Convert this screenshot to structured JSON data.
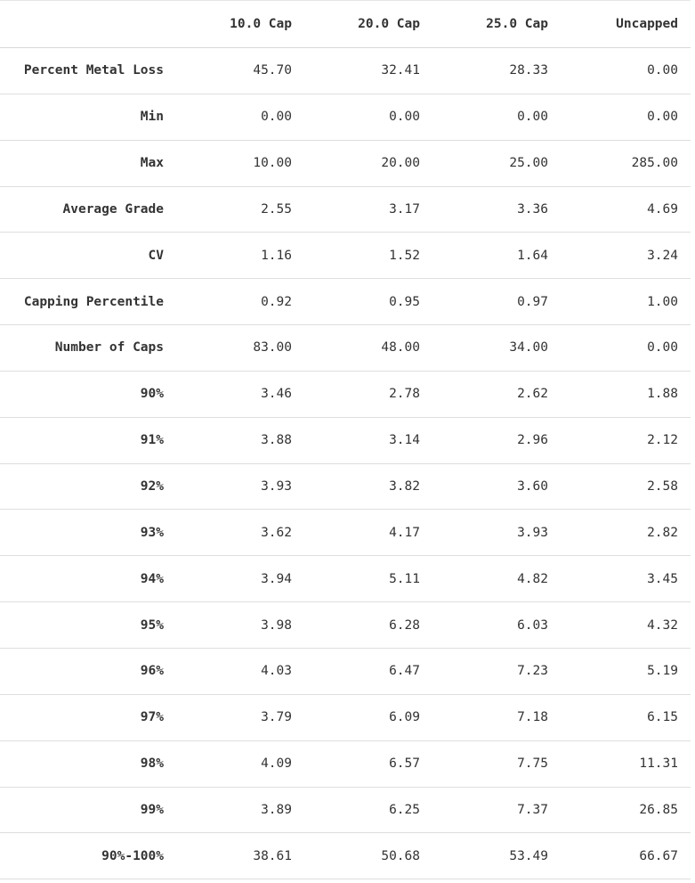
{
  "table": {
    "columns": [
      "",
      "10.0 Cap",
      "20.0 Cap",
      "25.0 Cap",
      "Uncapped"
    ],
    "rows": [
      {
        "label": "Percent Metal Loss",
        "values": [
          "45.70",
          "32.41",
          "28.33",
          "0.00"
        ]
      },
      {
        "label": "Min",
        "values": [
          "0.00",
          "0.00",
          "0.00",
          "0.00"
        ]
      },
      {
        "label": "Max",
        "values": [
          "10.00",
          "20.00",
          "25.00",
          "285.00"
        ]
      },
      {
        "label": "Average Grade",
        "values": [
          "2.55",
          "3.17",
          "3.36",
          "4.69"
        ]
      },
      {
        "label": "CV",
        "values": [
          "1.16",
          "1.52",
          "1.64",
          "3.24"
        ]
      },
      {
        "label": "Capping Percentile",
        "values": [
          "0.92",
          "0.95",
          "0.97",
          "1.00"
        ]
      },
      {
        "label": "Number of Caps",
        "values": [
          "83.00",
          "48.00",
          "34.00",
          "0.00"
        ]
      },
      {
        "label": "90%",
        "values": [
          "3.46",
          "2.78",
          "2.62",
          "1.88"
        ]
      },
      {
        "label": "91%",
        "values": [
          "3.88",
          "3.14",
          "2.96",
          "2.12"
        ]
      },
      {
        "label": "92%",
        "values": [
          "3.93",
          "3.82",
          "3.60",
          "2.58"
        ]
      },
      {
        "label": "93%",
        "values": [
          "3.62",
          "4.17",
          "3.93",
          "2.82"
        ]
      },
      {
        "label": "94%",
        "values": [
          "3.94",
          "5.11",
          "4.82",
          "3.45"
        ]
      },
      {
        "label": "95%",
        "values": [
          "3.98",
          "6.28",
          "6.03",
          "4.32"
        ]
      },
      {
        "label": "96%",
        "values": [
          "4.03",
          "6.47",
          "7.23",
          "5.19"
        ]
      },
      {
        "label": "97%",
        "values": [
          "3.79",
          "6.09",
          "7.18",
          "6.15"
        ]
      },
      {
        "label": "98%",
        "values": [
          "4.09",
          "6.57",
          "7.75",
          "11.31"
        ]
      },
      {
        "label": "99%",
        "values": [
          "3.89",
          "6.25",
          "7.37",
          "26.85"
        ]
      },
      {
        "label": "90%-100%",
        "values": [
          "38.61",
          "50.68",
          "53.49",
          "66.67"
        ]
      }
    ]
  }
}
